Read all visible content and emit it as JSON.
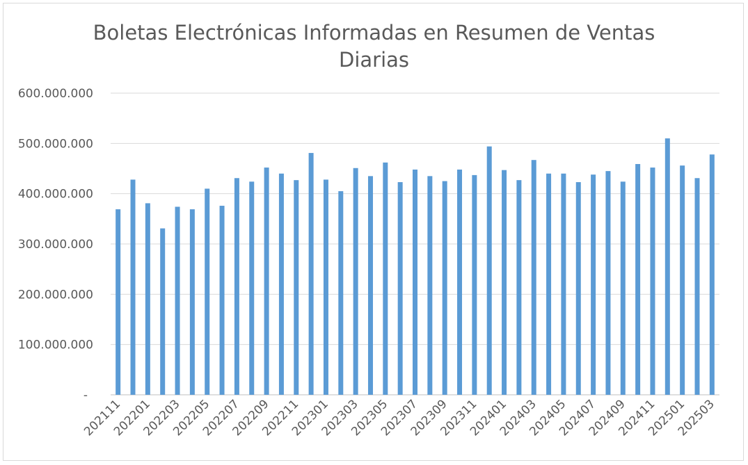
{
  "chart_data": {
    "type": "bar",
    "title_lines": [
      "Boletas Electrónicas Informadas en Resumen de Ventas",
      "Diarias"
    ],
    "xlabel": "",
    "ylabel": "",
    "ylim": [
      0,
      600000000
    ],
    "y_ticks": [
      0,
      100000000,
      200000000,
      300000000,
      400000000,
      500000000,
      600000000
    ],
    "y_tick_labels": [
      "-",
      "100.000.000",
      "200.000.000",
      "300.000.000",
      "400.000.000",
      "500.000.000",
      "600.000.000"
    ],
    "grid": true,
    "legend": "none",
    "bar_color": "#5b9bd5",
    "categories": [
      "202111",
      "202112",
      "202201",
      "202202",
      "202203",
      "202204",
      "202205",
      "202206",
      "202207",
      "202208",
      "202209",
      "202210",
      "202211",
      "202212",
      "202301",
      "202302",
      "202303",
      "202304",
      "202305",
      "202306",
      "202307",
      "202308",
      "202309",
      "202310",
      "202311",
      "202312",
      "202401",
      "202402",
      "202403",
      "202404",
      "202405",
      "202406",
      "202407",
      "202408",
      "202409",
      "202410",
      "202411",
      "202412",
      "202501",
      "202502",
      "202503"
    ],
    "x_tick_labels": [
      "202111",
      "202201",
      "202203",
      "202205",
      "202207",
      "202209",
      "202211",
      "202301",
      "202303",
      "202305",
      "202307",
      "202309",
      "202311",
      "202401",
      "202403",
      "202405",
      "202407",
      "202409",
      "202411",
      "202501",
      "202503"
    ],
    "values": [
      369000000,
      428000000,
      381000000,
      331000000,
      374000000,
      369000000,
      410000000,
      376000000,
      431000000,
      424000000,
      452000000,
      440000000,
      427000000,
      481000000,
      428000000,
      405000000,
      451000000,
      435000000,
      462000000,
      423000000,
      448000000,
      435000000,
      425000000,
      448000000,
      437000000,
      494000000,
      447000000,
      427000000,
      467000000,
      440000000,
      440000000,
      423000000,
      438000000,
      445000000,
      424000000,
      459000000,
      452000000,
      510000000,
      456000000,
      431000000,
      478000000
    ]
  }
}
